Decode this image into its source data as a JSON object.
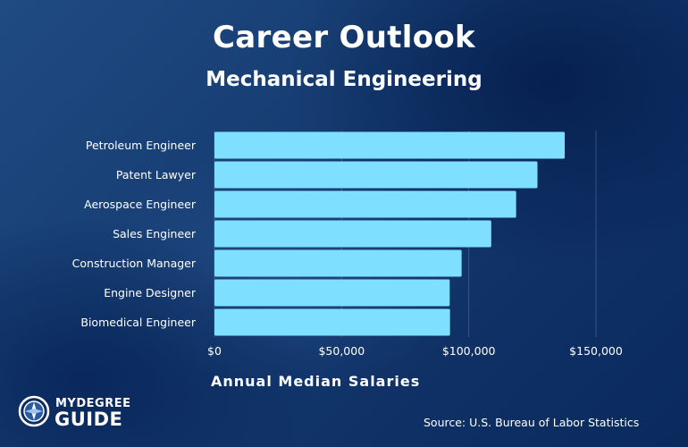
{
  "header": {
    "title": "Career Outlook",
    "subtitle": "Mechanical Engineering"
  },
  "chart_data": {
    "type": "bar",
    "orientation": "horizontal",
    "categories": [
      "Petroleum Engineer",
      "Patent Lawyer",
      "Aerospace Engineer",
      "Sales Engineer",
      "Construction Manager",
      "Engine Designer",
      "Biomedical Engineer"
    ],
    "values": [
      137720,
      127000,
      118610,
      108830,
      97180,
      92500,
      92620
    ],
    "xlabel": "Annual Median Salaries",
    "xlim": [
      0,
      150000
    ],
    "xticks": [
      0,
      50000,
      100000,
      150000
    ],
    "xtick_labels": [
      "$0",
      "$50,000",
      "$100,000",
      "$150,000"
    ],
    "bar_color": "#7fdfff",
    "grid": true
  },
  "footer": {
    "source": "Source: U.S. Bureau of Labor Statistics",
    "logo_top": "MYDEGREE",
    "logo_bottom": "GUIDE"
  },
  "colors": {
    "background": "#163d72",
    "bar": "#7fdfff",
    "text": "#ffffff"
  }
}
